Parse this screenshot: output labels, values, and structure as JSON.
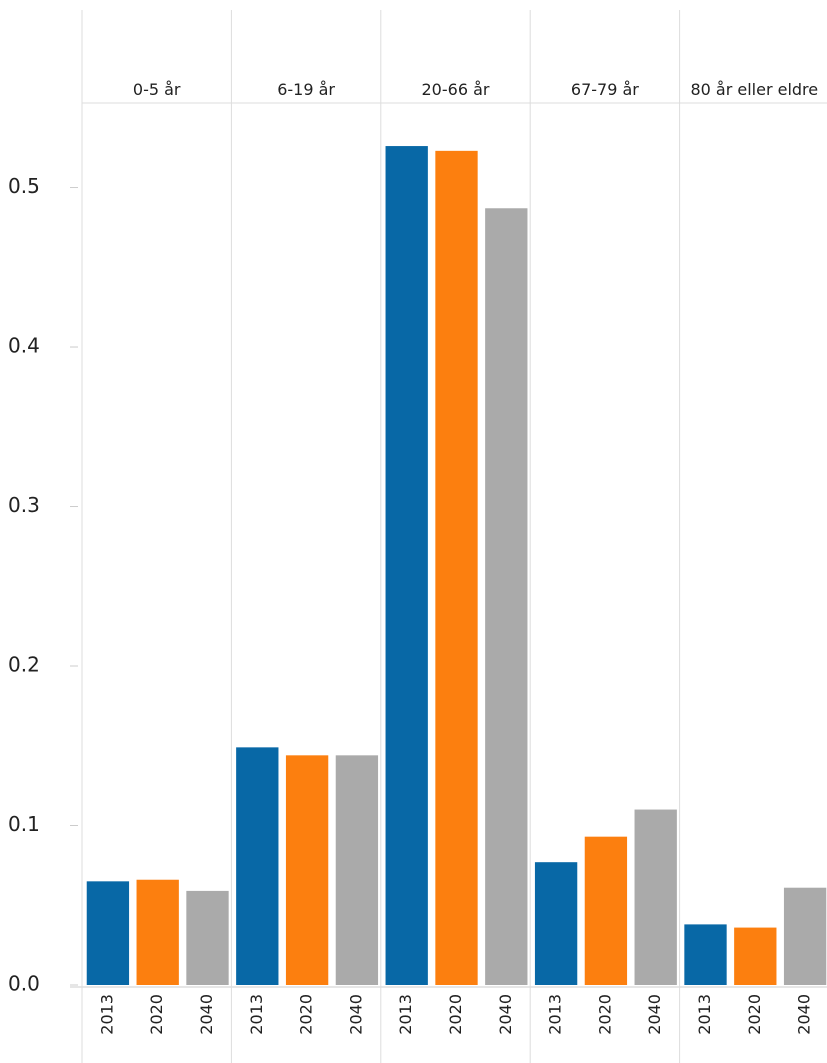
{
  "chart_data": {
    "type": "bar",
    "categories": [
      "0-5 år",
      "6-19 år",
      "20-66 år",
      "67-79 år",
      "80 år eller eldre"
    ],
    "series": [
      {
        "name": "2013",
        "color": "#0868a6",
        "values": [
          0.065,
          0.149,
          0.526,
          0.077,
          0.038
        ]
      },
      {
        "name": "2020",
        "color": "#fc7f0f",
        "values": [
          0.066,
          0.144,
          0.523,
          0.093,
          0.036
        ]
      },
      {
        "name": "2040",
        "color": "#aaaaaa",
        "values": [
          0.059,
          0.144,
          0.487,
          0.11,
          0.061
        ]
      }
    ],
    "ylim": [
      0,
      0.553
    ],
    "yticks": [
      {
        "value": 0,
        "label": "0.0"
      },
      0.1,
      0.2,
      0.3,
      0.4,
      0.5
    ],
    "grid": false
  }
}
